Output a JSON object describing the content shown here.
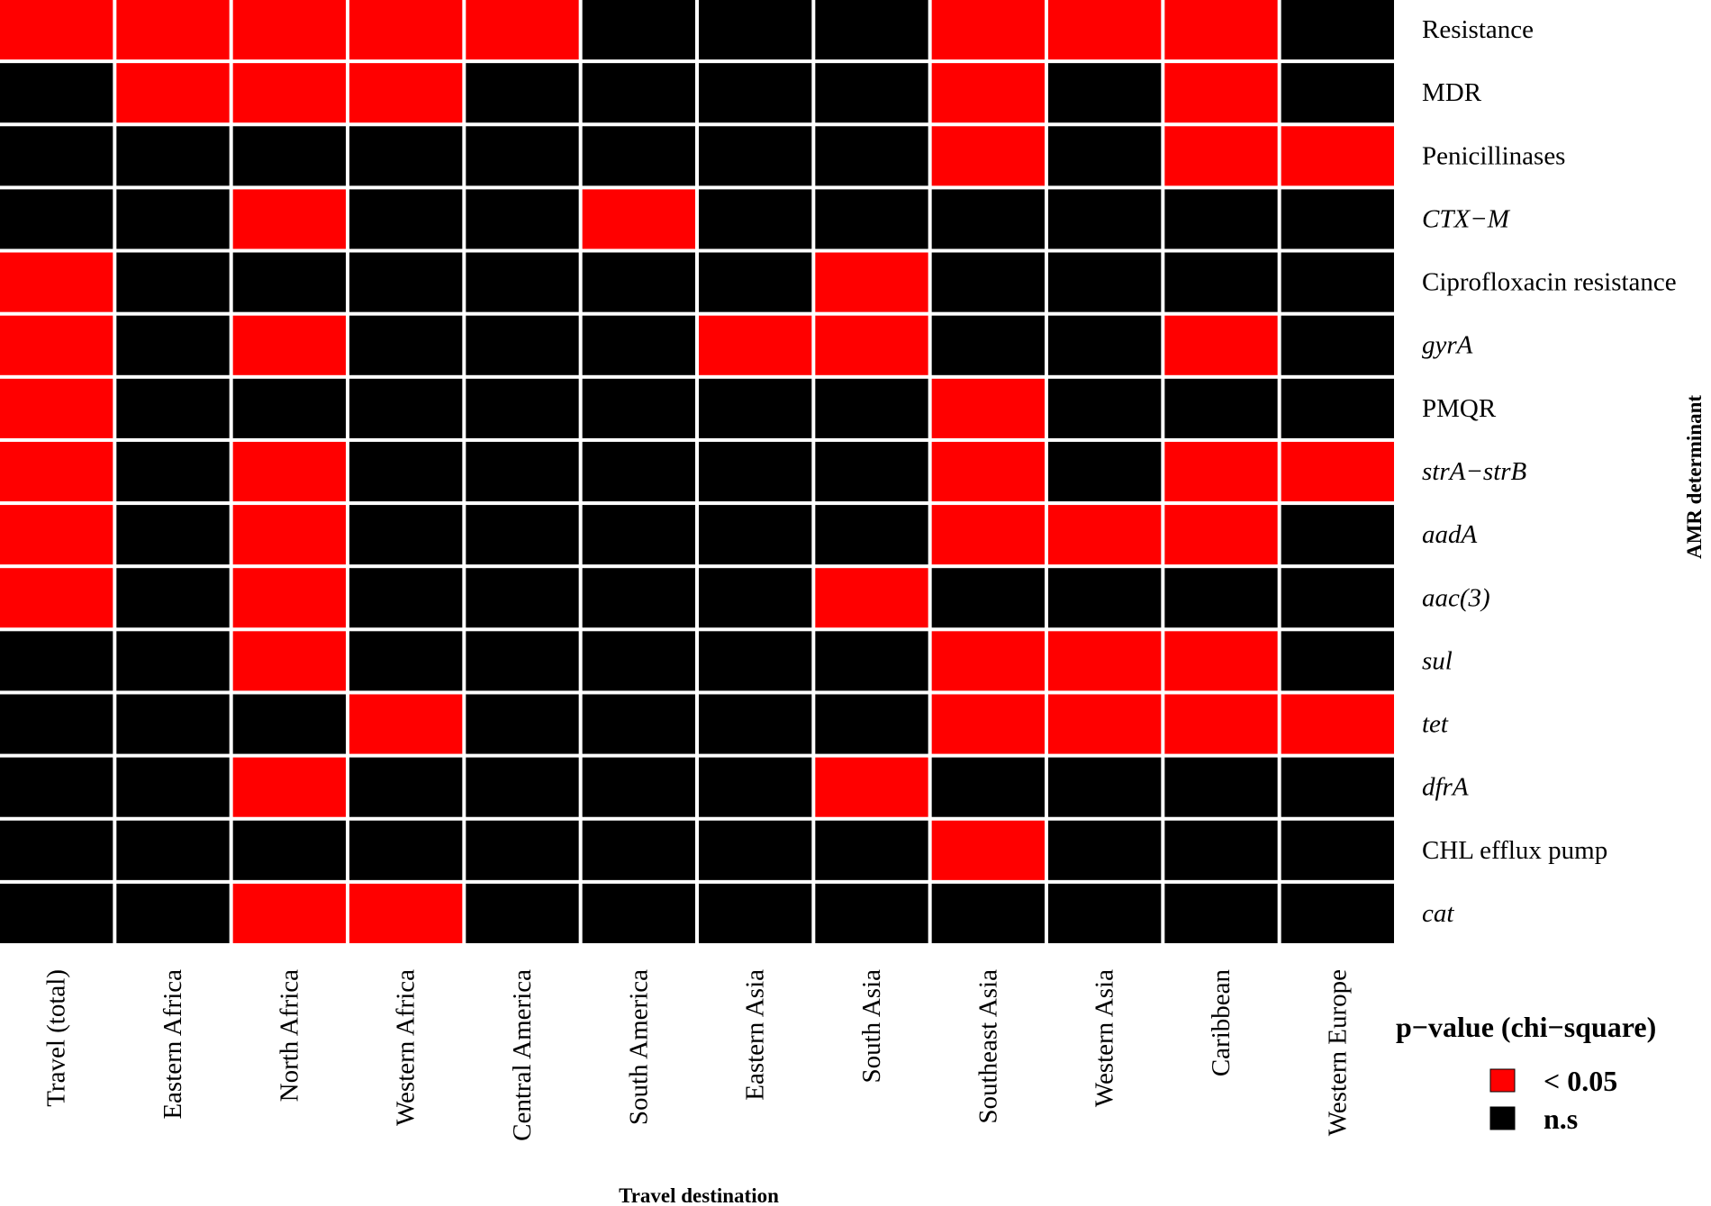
{
  "chart_data": {
    "type": "heatmap",
    "xlabel": "Travel destination",
    "ylabel": "AMR determinant",
    "columns": [
      "Travel (total)",
      "Eastern Africa",
      "North Africa",
      "Western Africa",
      "Central America",
      "South America",
      "Eastern Asia",
      "South Asia",
      "Southeast Asia",
      "Western Asia",
      "Caribbean",
      "Western Europe"
    ],
    "rows": [
      {
        "label": "Resistance",
        "italic": false,
        "values": [
          1,
          1,
          1,
          1,
          1,
          0,
          0,
          0,
          1,
          1,
          1,
          0
        ]
      },
      {
        "label": "MDR",
        "italic": false,
        "values": [
          0,
          1,
          1,
          1,
          0,
          0,
          0,
          0,
          1,
          0,
          1,
          0
        ]
      },
      {
        "label": "Penicillinases",
        "italic": false,
        "values": [
          0,
          0,
          0,
          0,
          0,
          0,
          0,
          0,
          1,
          0,
          1,
          1
        ]
      },
      {
        "label": "CTX−M",
        "italic": true,
        "values": [
          0,
          0,
          1,
          0,
          0,
          1,
          0,
          0,
          0,
          0,
          0,
          0
        ]
      },
      {
        "label": "Ciprofloxacin resistance",
        "italic": false,
        "values": [
          1,
          0,
          0,
          0,
          0,
          0,
          0,
          1,
          0,
          0,
          0,
          0
        ]
      },
      {
        "label": "gyrA",
        "italic": true,
        "values": [
          1,
          0,
          1,
          0,
          0,
          0,
          1,
          1,
          0,
          0,
          1,
          0
        ]
      },
      {
        "label": "PMQR",
        "italic": false,
        "values": [
          1,
          0,
          0,
          0,
          0,
          0,
          0,
          0,
          1,
          0,
          0,
          0
        ]
      },
      {
        "label": "strA−strB",
        "italic": true,
        "values": [
          1,
          0,
          1,
          0,
          0,
          0,
          0,
          0,
          1,
          0,
          1,
          1
        ]
      },
      {
        "label": "aadA",
        "italic": true,
        "values": [
          1,
          0,
          1,
          0,
          0,
          0,
          0,
          0,
          1,
          1,
          1,
          0
        ]
      },
      {
        "label": "aac(3)",
        "italic": true,
        "values": [
          1,
          0,
          1,
          0,
          0,
          0,
          0,
          1,
          0,
          0,
          0,
          0
        ]
      },
      {
        "label": "sul",
        "italic": true,
        "values": [
          0,
          0,
          1,
          0,
          0,
          0,
          0,
          0,
          1,
          1,
          1,
          0
        ]
      },
      {
        "label": "tet",
        "italic": true,
        "values": [
          0,
          0,
          0,
          1,
          0,
          0,
          0,
          0,
          1,
          1,
          1,
          1
        ]
      },
      {
        "label": "dfrA",
        "italic": true,
        "values": [
          0,
          0,
          1,
          0,
          0,
          0,
          0,
          1,
          0,
          0,
          0,
          0
        ]
      },
      {
        "label": "CHL efflux pump",
        "italic": false,
        "values": [
          0,
          0,
          0,
          0,
          0,
          0,
          0,
          0,
          1,
          0,
          0,
          0
        ]
      },
      {
        "label": "cat",
        "italic": true,
        "values": [
          0,
          0,
          1,
          1,
          0,
          0,
          0,
          0,
          0,
          0,
          0,
          0
        ]
      }
    ],
    "value_encoding": {
      "1": "< 0.05",
      "0": "n.s"
    },
    "legend": {
      "title": "p−value (chi−square)",
      "position": "bottom-right",
      "items": [
        {
          "label": "< 0.05",
          "color": "#ff0000"
        },
        {
          "label": "n.s",
          "color": "#000000"
        }
      ]
    },
    "colors": {
      "significant": "#ff0000",
      "not_significant": "#000000"
    }
  }
}
